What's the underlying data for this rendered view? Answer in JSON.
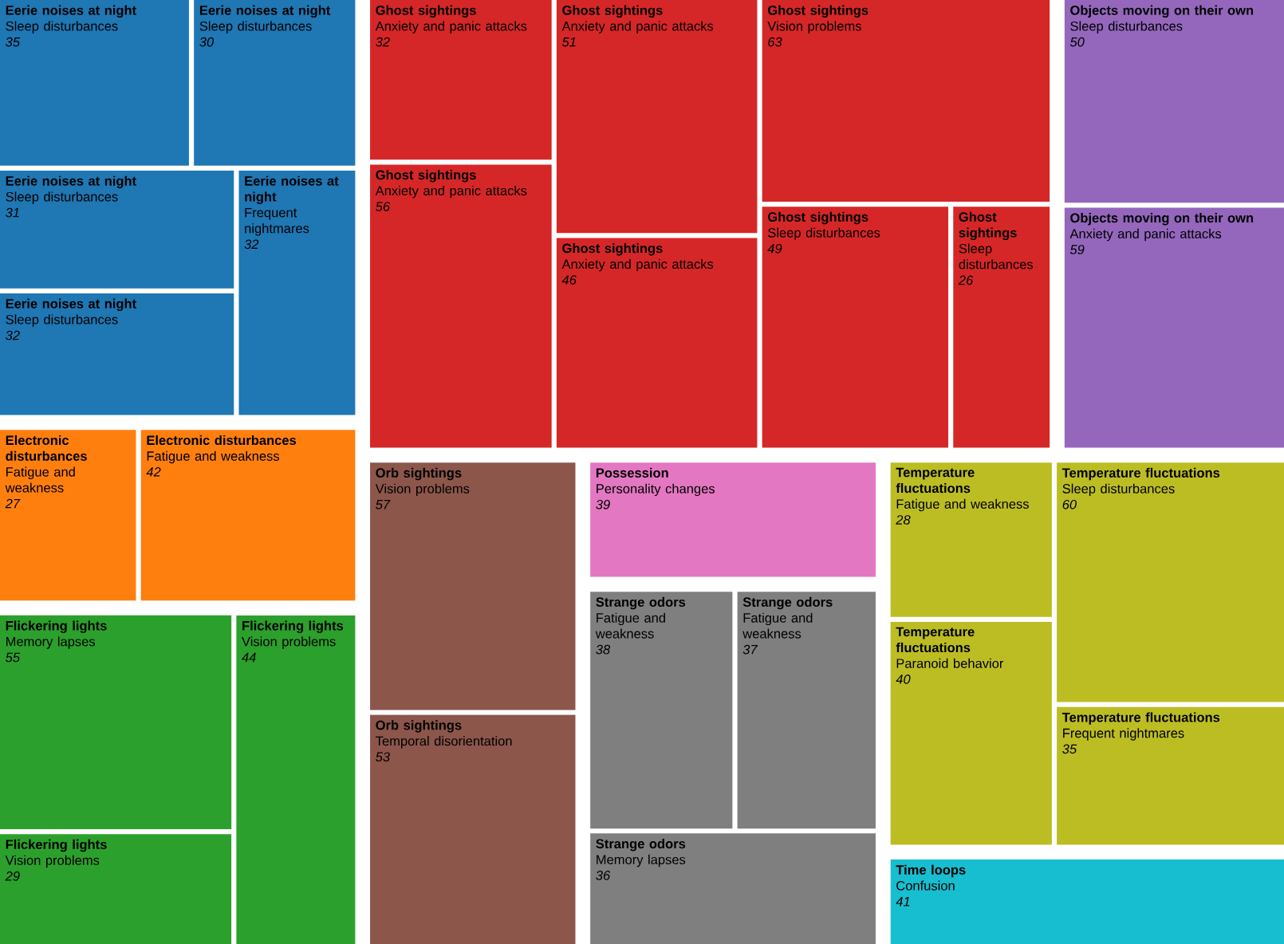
{
  "chart_data": {
    "type": "other",
    "data_labels": true,
    "categories": [
      "Sleep disturbances",
      "Sleep disturbances",
      "Sleep disturbances",
      "Sleep disturbances",
      "Frequent nightmares",
      "Fatigue and weakness",
      "Fatigue and weakness",
      "Memory lapses",
      "Vision problems",
      "Vision problems",
      "Anxiety and panic attacks",
      "Anxiety and panic attacks",
      "Anxiety and panic attacks",
      "Anxiety and panic attacks",
      "Vision problems",
      "Sleep disturbances",
      "Sleep disturbances",
      "Sleep disturbances",
      "Anxiety and panic attacks",
      "Vision problems",
      "Temporal disorientation",
      "Personality changes",
      "Fatigue and weakness",
      "Fatigue and weakness",
      "Memory lapses",
      "Fatigue and weakness",
      "Paranoid behavior",
      "Sleep disturbances",
      "Frequent nightmares",
      "Confusion"
    ],
    "series": [
      {
        "name": "Eerie noises at night",
        "color": "#1f77b4",
        "values": [
          35,
          30,
          31,
          32,
          32,
          null,
          null,
          null,
          null,
          null,
          null,
          null,
          null,
          null,
          null,
          null,
          null,
          null,
          null,
          null,
          null,
          null,
          null,
          null,
          null,
          null,
          null,
          null,
          null,
          null
        ]
      },
      {
        "name": "Electronic disturbances",
        "color": "#ff7f0e",
        "values": [
          null,
          null,
          null,
          null,
          null,
          27,
          42,
          null,
          null,
          null,
          null,
          null,
          null,
          null,
          null,
          null,
          null,
          null,
          null,
          null,
          null,
          null,
          null,
          null,
          null,
          null,
          null,
          null,
          null,
          null
        ]
      },
      {
        "name": "Flickering lights",
        "color": "#2ca02c",
        "values": [
          null,
          null,
          null,
          null,
          null,
          null,
          null,
          55,
          29,
          44,
          null,
          null,
          null,
          null,
          null,
          null,
          null,
          null,
          null,
          null,
          null,
          null,
          null,
          null,
          null,
          null,
          null,
          null,
          null,
          null
        ]
      },
      {
        "name": "Ghost sightings",
        "color": "#d62728",
        "values": [
          null,
          null,
          null,
          null,
          null,
          null,
          null,
          null,
          null,
          null,
          32,
          56,
          51,
          46,
          63,
          49,
          26,
          null,
          null,
          null,
          null,
          null,
          null,
          null,
          null,
          null,
          null,
          null,
          null,
          null
        ]
      },
      {
        "name": "Objects moving on their own",
        "color": "#9467bd",
        "values": [
          null,
          null,
          null,
          null,
          null,
          null,
          null,
          null,
          null,
          null,
          null,
          null,
          null,
          null,
          null,
          null,
          null,
          50,
          59,
          null,
          null,
          null,
          null,
          null,
          null,
          null,
          null,
          null,
          null,
          null
        ]
      },
      {
        "name": "Orb sightings",
        "color": "#8c564b",
        "values": [
          null,
          null,
          null,
          null,
          null,
          null,
          null,
          null,
          null,
          null,
          null,
          null,
          null,
          null,
          null,
          null,
          null,
          null,
          null,
          57,
          53,
          null,
          null,
          null,
          null,
          null,
          null,
          null,
          null,
          null
        ]
      },
      {
        "name": "Possession",
        "color": "#e377c2",
        "values": [
          null,
          null,
          null,
          null,
          null,
          null,
          null,
          null,
          null,
          null,
          null,
          null,
          null,
          null,
          null,
          null,
          null,
          null,
          null,
          null,
          null,
          39,
          null,
          null,
          null,
          null,
          null,
          null,
          null,
          null
        ]
      },
      {
        "name": "Strange odors",
        "color": "#7f7f7f",
        "values": [
          null,
          null,
          null,
          null,
          null,
          null,
          null,
          null,
          null,
          null,
          null,
          null,
          null,
          null,
          null,
          null,
          null,
          null,
          null,
          null,
          null,
          null,
          38,
          37,
          36,
          null,
          null,
          null,
          null,
          null
        ]
      },
      {
        "name": "Temperature fluctuations",
        "color": "#bcbd22",
        "values": [
          null,
          null,
          null,
          null,
          null,
          null,
          null,
          null,
          null,
          null,
          null,
          null,
          null,
          null,
          null,
          null,
          null,
          null,
          null,
          null,
          null,
          null,
          null,
          null,
          null,
          28,
          40,
          60,
          35,
          null
        ]
      },
      {
        "name": "Time loops",
        "color": "#17becf",
        "values": [
          null,
          null,
          null,
          null,
          null,
          null,
          null,
          null,
          null,
          null,
          null,
          null,
          null,
          null,
          null,
          null,
          null,
          null,
          null,
          null,
          null,
          null,
          null,
          null,
          null,
          null,
          null,
          null,
          null,
          41
        ]
      }
    ]
  }
}
